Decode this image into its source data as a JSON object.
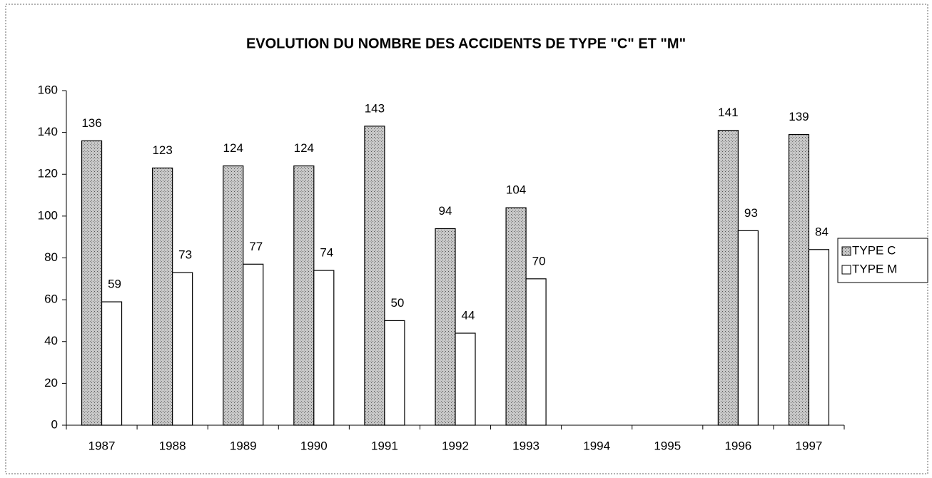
{
  "chart_data": {
    "type": "bar",
    "title": "EVOLUTION DU NOMBRE DES ACCIDENTS DE TYPE \"C\" ET \"M\"",
    "categories": [
      "1987",
      "1988",
      "1989",
      "1990",
      "1991",
      "1992",
      "1993",
      "1994",
      "1995",
      "1996",
      "1997"
    ],
    "series": [
      {
        "name": "TYPE C",
        "color": "#b4b4b4",
        "values": [
          136,
          123,
          124,
          124,
          143,
          94,
          104,
          null,
          null,
          141,
          139
        ]
      },
      {
        "name": "TYPE M",
        "color": "#ffffff",
        "values": [
          59,
          73,
          77,
          74,
          50,
          44,
          70,
          null,
          null,
          93,
          84
        ]
      }
    ],
    "ylim": [
      0,
      160
    ],
    "yticks": [
      0,
      20,
      40,
      60,
      80,
      100,
      120,
      140,
      160
    ],
    "legend": "right",
    "data_labels": true
  }
}
